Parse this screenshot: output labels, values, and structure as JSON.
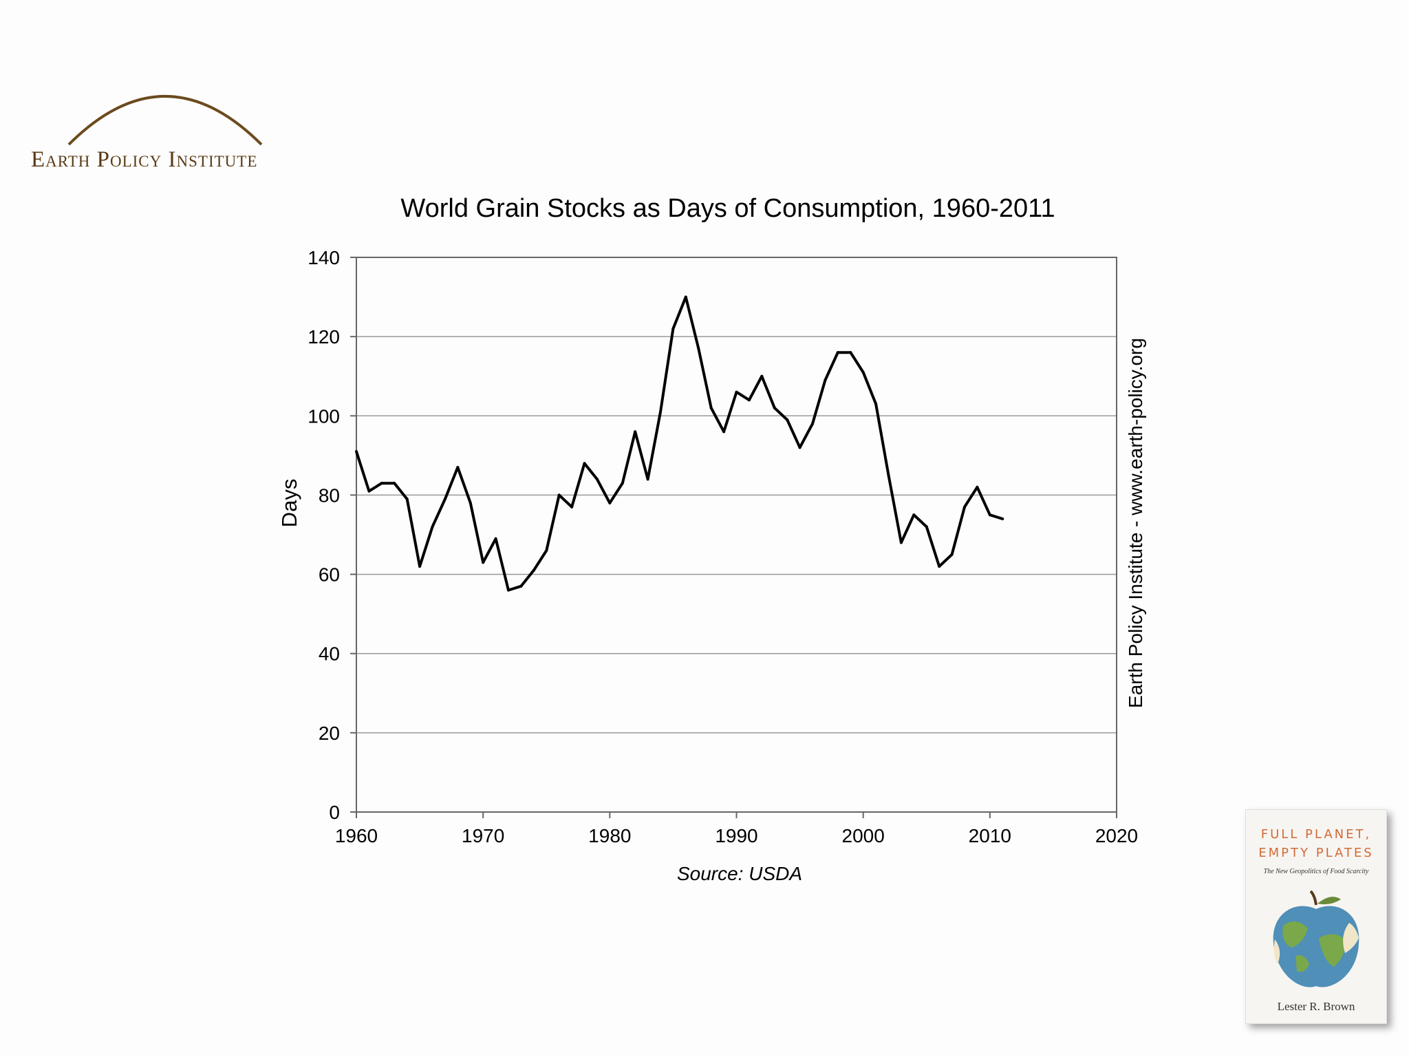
{
  "logo": {
    "text": "Earth Policy Institute",
    "arc_color": "#6b4a1e",
    "text_color": "#5a3a14"
  },
  "footer": {
    "source": "Source: USDA"
  },
  "watermark": {
    "text": "Earth Policy Institute - www.earth-policy.org"
  },
  "book": {
    "title": "FULL PLANET,\nEMPTY PLATES",
    "subtitle": "The New Geopolitics of Food Scarcity",
    "author": "Lester R. Brown",
    "title_color": "#d26a37"
  },
  "chart_data": {
    "type": "line",
    "title": "World Grain Stocks as Days of Consumption, 1960-2011",
    "xlabel": "",
    "ylabel": "Days",
    "xlim": [
      1960,
      2020
    ],
    "ylim": [
      0,
      140
    ],
    "xticks": [
      1960,
      1970,
      1980,
      1990,
      2000,
      2010,
      2020
    ],
    "yticks": [
      0,
      20,
      40,
      60,
      80,
      100,
      120,
      140
    ],
    "grid": "horizontal",
    "legend": "none",
    "line_color": "#000000",
    "x": [
      1960,
      1961,
      1962,
      1963,
      1964,
      1965,
      1966,
      1967,
      1968,
      1969,
      1970,
      1971,
      1972,
      1973,
      1974,
      1975,
      1976,
      1977,
      1978,
      1979,
      1980,
      1981,
      1982,
      1983,
      1984,
      1985,
      1986,
      1987,
      1988,
      1989,
      1990,
      1991,
      1992,
      1993,
      1994,
      1995,
      1996,
      1997,
      1998,
      1999,
      2000,
      2001,
      2002,
      2003,
      2004,
      2005,
      2006,
      2007,
      2008,
      2009,
      2010,
      2011
    ],
    "series": [
      {
        "values": [
          91,
          81,
          83,
          83,
          79,
          62,
          72,
          79,
          87,
          78,
          63,
          69,
          56,
          57,
          61,
          66,
          80,
          77,
          88,
          84,
          78,
          83,
          96,
          84,
          101,
          122,
          130,
          117,
          102,
          96,
          106,
          104,
          110,
          102,
          99,
          92,
          98,
          109,
          116,
          116,
          111,
          103,
          85,
          68,
          75,
          72,
          62,
          65,
          77,
          82,
          75,
          74
        ]
      }
    ]
  }
}
